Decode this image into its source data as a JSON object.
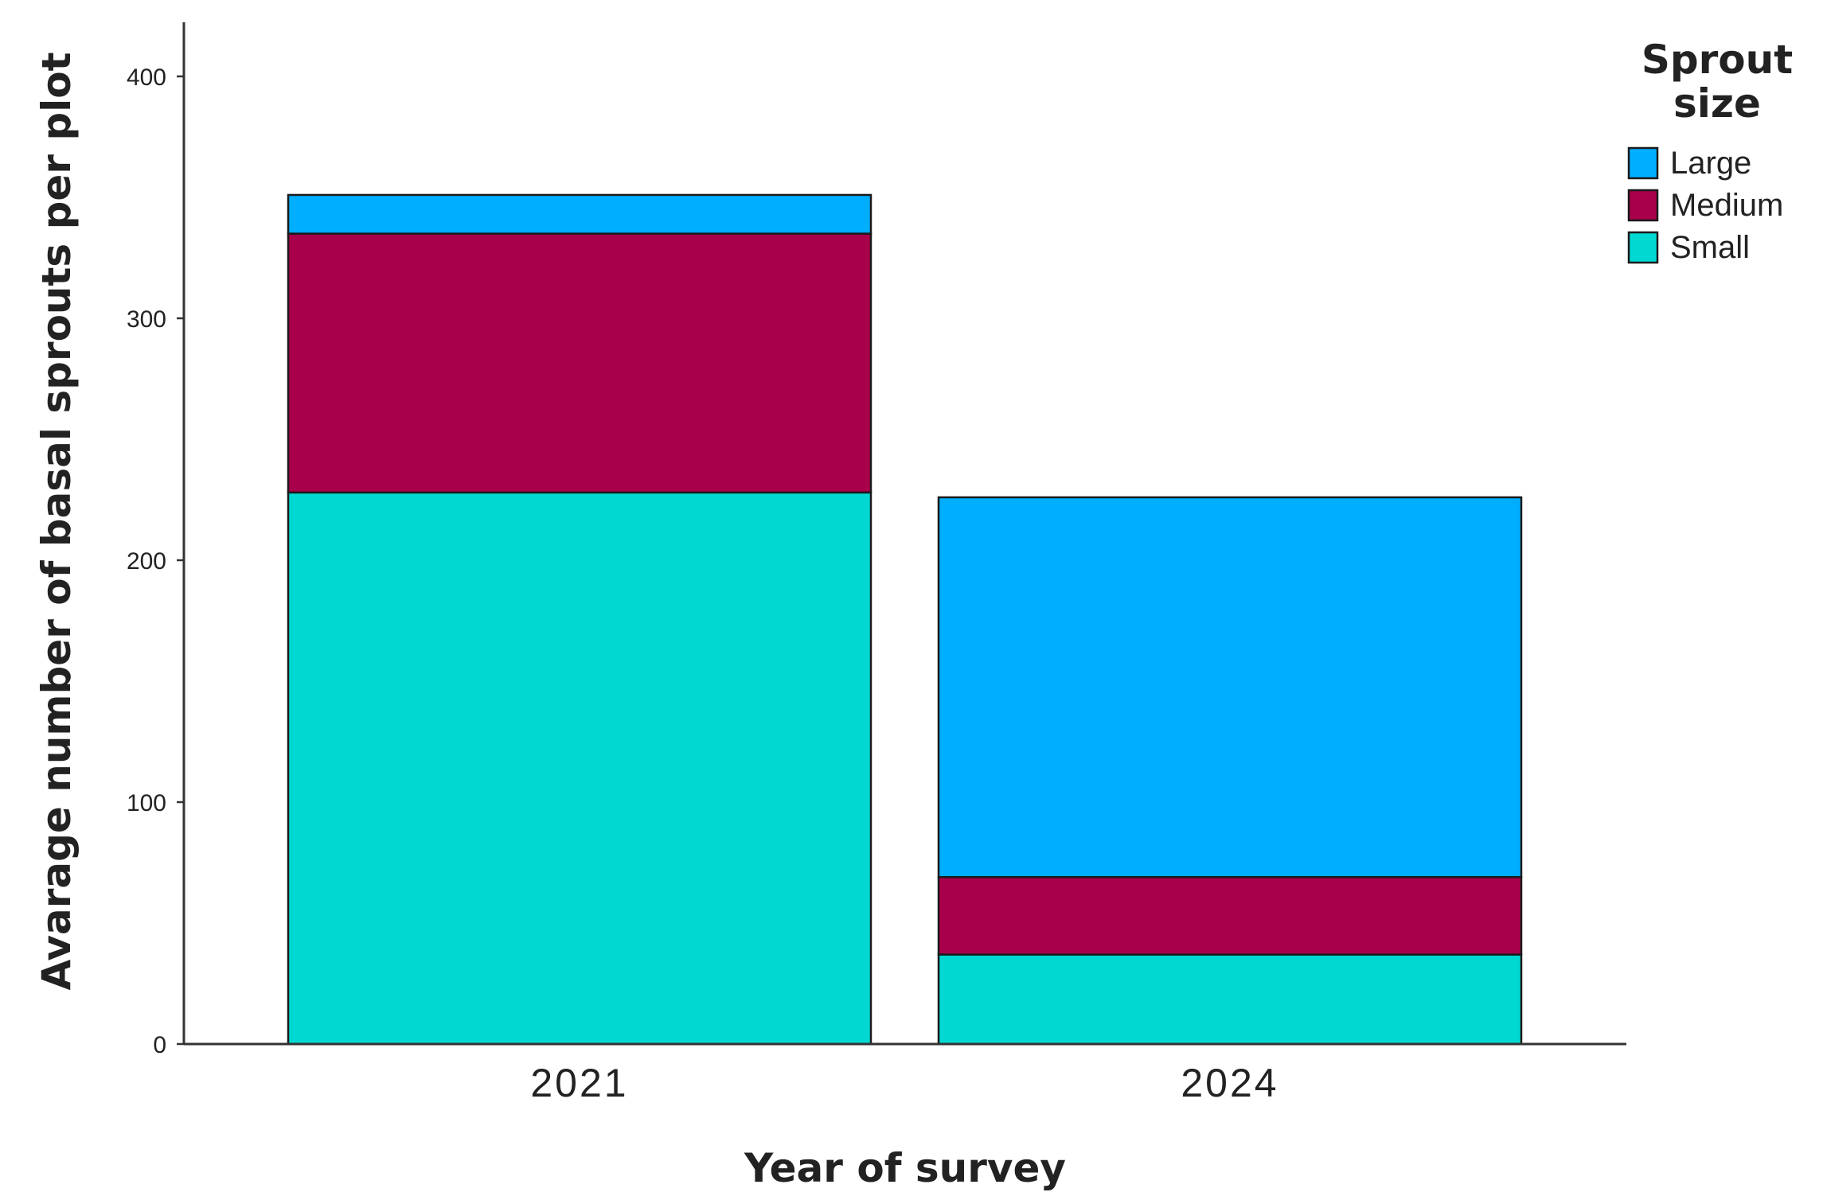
{
  "chart_data": {
    "type": "bar",
    "stacked": true,
    "categories": [
      "2021",
      "2024"
    ],
    "series": [
      {
        "name": "Small",
        "values": [
          228,
          37
        ],
        "color": "#00d8d2"
      },
      {
        "name": "Medium",
        "values": [
          107,
          32
        ],
        "color": "#a8004a"
      },
      {
        "name": "Large",
        "values": [
          16,
          157
        ],
        "color": "#00aeff"
      }
    ],
    "xlabel": "Year of survey",
    "ylabel": "Avarage number of basal sprouts per plot",
    "ylim": [
      0,
      420
    ],
    "yticks": [
      0,
      100,
      200,
      300,
      400
    ],
    "grid": false,
    "legend": {
      "title_lines": [
        "Sprout",
        "size"
      ],
      "placement": "top-right",
      "order": [
        "Large",
        "Medium",
        "Small"
      ]
    }
  }
}
